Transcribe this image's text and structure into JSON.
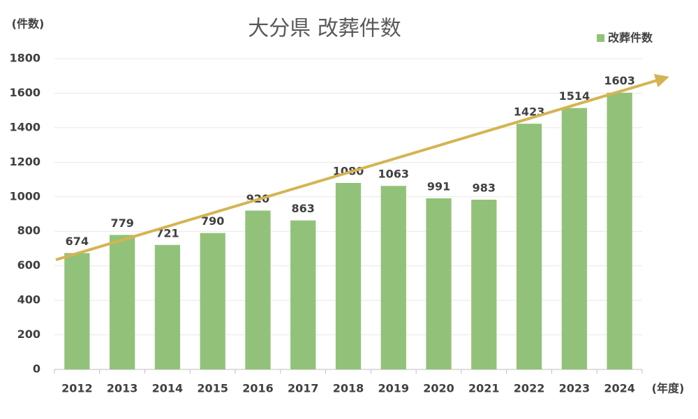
{
  "chart_data": {
    "type": "bar",
    "title": "大分県 改葬件数",
    "y_label": "(件数)",
    "x_label": "(年度)",
    "categories": [
      "2012",
      "2013",
      "2014",
      "2015",
      "2016",
      "2017",
      "2018",
      "2019",
      "2020",
      "2021",
      "2022",
      "2023",
      "2024"
    ],
    "series": [
      {
        "name": "改葬件数",
        "color": "#92c279",
        "values": [
          674,
          779,
          721,
          790,
          920,
          863,
          1080,
          1063,
          991,
          983,
          1423,
          1514,
          1603
        ]
      }
    ],
    "ylim": [
      0,
      1800
    ],
    "yticks": [
      0,
      200,
      400,
      600,
      800,
      1000,
      1200,
      1400,
      1600,
      1800
    ],
    "grid": true,
    "legend": "top-right"
  }
}
